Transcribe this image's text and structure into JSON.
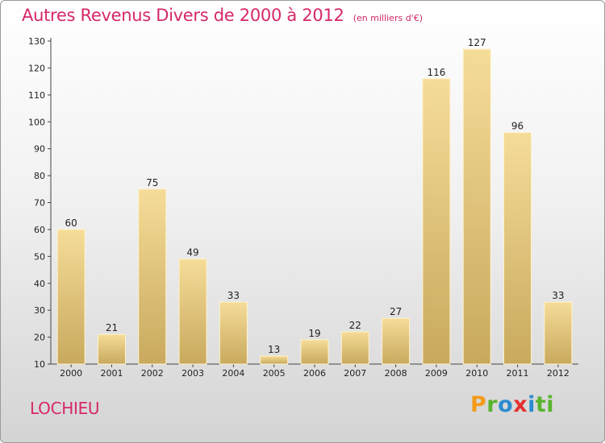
{
  "title": "Autres Revenus Divers de 2000 à 2012",
  "unit_note": "(en milliers d'€)",
  "commune": "LOCHIEU",
  "logo": [
    "P",
    "r",
    "o",
    "x",
    "i",
    "ti"
  ],
  "colors": {
    "accent": "#d6286b",
    "bar_top": "#f5dc98",
    "bar_bottom": "#c8a95e"
  },
  "chart_data": {
    "type": "bar",
    "title": "Autres Revenus Divers de 2000 à 2012",
    "subtitle": "(en milliers d'€)",
    "categories": [
      "2000",
      "2001",
      "2002",
      "2003",
      "2004",
      "2005",
      "2006",
      "2007",
      "2008",
      "2009",
      "2010",
      "2011",
      "2012"
    ],
    "values": [
      60,
      21,
      75,
      49,
      33,
      13,
      19,
      22,
      27,
      116,
      127,
      96,
      33
    ],
    "ylim": [
      10,
      130
    ],
    "yticks": [
      10,
      20,
      30,
      40,
      50,
      60,
      70,
      80,
      90,
      100,
      110,
      120,
      130
    ],
    "grid": false,
    "data_labels": true
  }
}
